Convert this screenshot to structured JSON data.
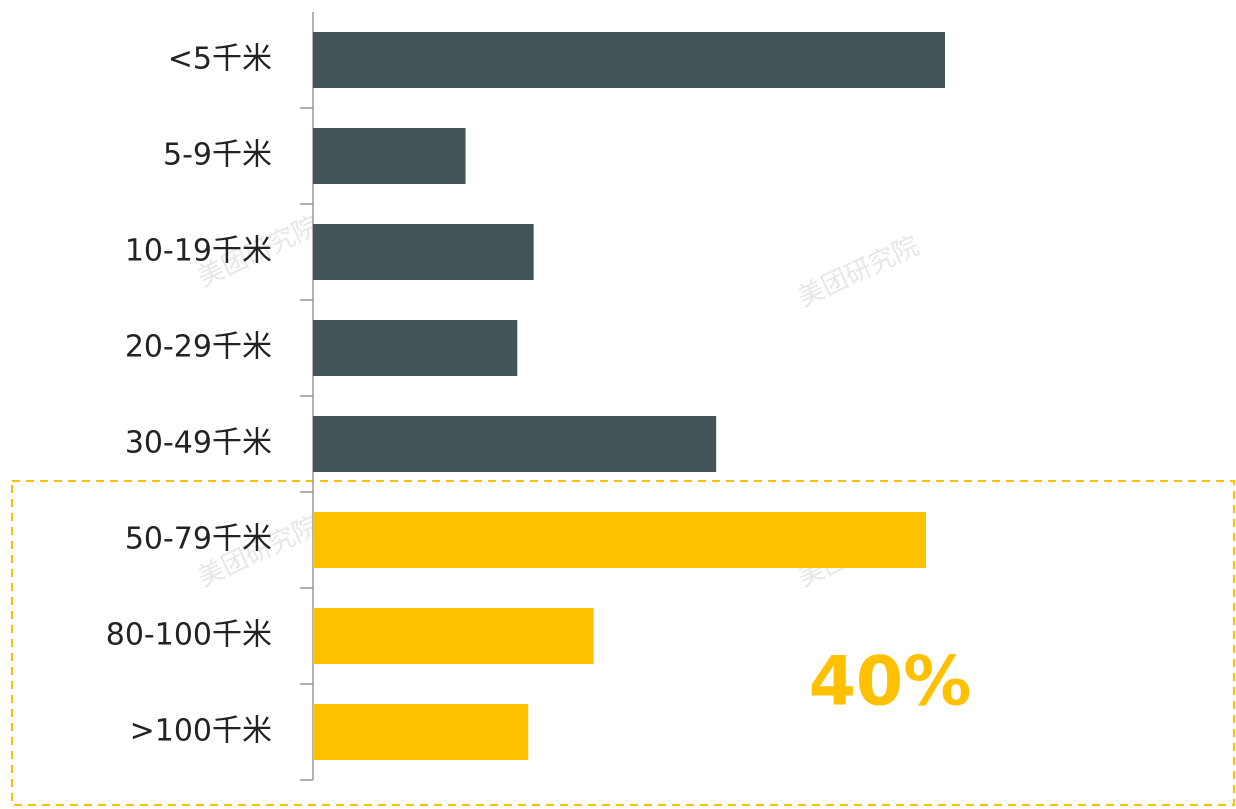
{
  "chart_data": {
    "type": "barh",
    "categories": [
      "<5千米",
      "5-9千米",
      "10-19千米",
      "20-29千米",
      "30-49千米",
      "50-79千米",
      "80-100千米",
      ">100千米"
    ],
    "values": [
      23.2,
      5.6,
      8.1,
      7.5,
      14.8,
      22.5,
      10.3,
      7.9
    ],
    "colors": [
      "#44555a",
      "#44555a",
      "#44555a",
      "#44555a",
      "#44555a",
      "#ffc000",
      "#ffc000",
      "#ffc000"
    ],
    "annotation": "40%",
    "watermark": "美团研究院"
  }
}
